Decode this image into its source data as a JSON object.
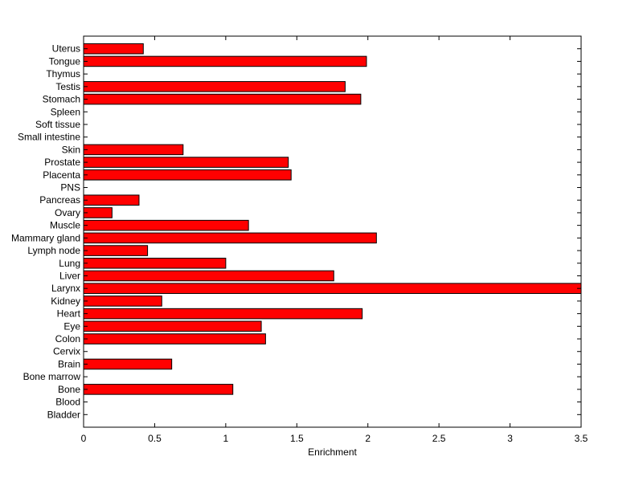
{
  "chart_data": {
    "type": "bar",
    "orientation": "horizontal",
    "title": "",
    "xlabel": "Enrichment",
    "ylabel": "",
    "xlim": [
      0,
      3.5
    ],
    "xticks": [
      0,
      0.5,
      1,
      1.5,
      2,
      2.5,
      3,
      3.5
    ],
    "xtick_labels": [
      "0",
      "0.5",
      "1",
      "1.5",
      "2",
      "2.5",
      "3",
      "3.5"
    ],
    "grid": false,
    "legend": "none",
    "bar_color": "#ff0000",
    "bar_edge_color": "#000000",
    "categories": [
      "Bladder",
      "Blood",
      "Bone",
      "Bone marrow",
      "Brain",
      "Cervix",
      "Colon",
      "Eye",
      "Heart",
      "Kidney",
      "Larynx",
      "Liver",
      "Lung",
      "Lymph node",
      "Mammary gland",
      "Muscle",
      "Ovary",
      "Pancreas",
      "PNS",
      "Placenta",
      "Prostate",
      "Skin",
      "Small intestine",
      "Soft tissue",
      "Spleen",
      "Stomach",
      "Testis",
      "Thymus",
      "Tongue",
      "Uterus"
    ],
    "values": [
      0,
      0,
      1.05,
      0,
      0.62,
      0,
      1.28,
      1.25,
      1.96,
      0.55,
      3.5,
      1.76,
      1.0,
      0.45,
      2.06,
      1.16,
      0.2,
      0.39,
      0,
      1.46,
      1.44,
      0.7,
      0,
      0,
      0,
      1.95,
      1.84,
      0,
      1.99,
      0.42
    ]
  }
}
